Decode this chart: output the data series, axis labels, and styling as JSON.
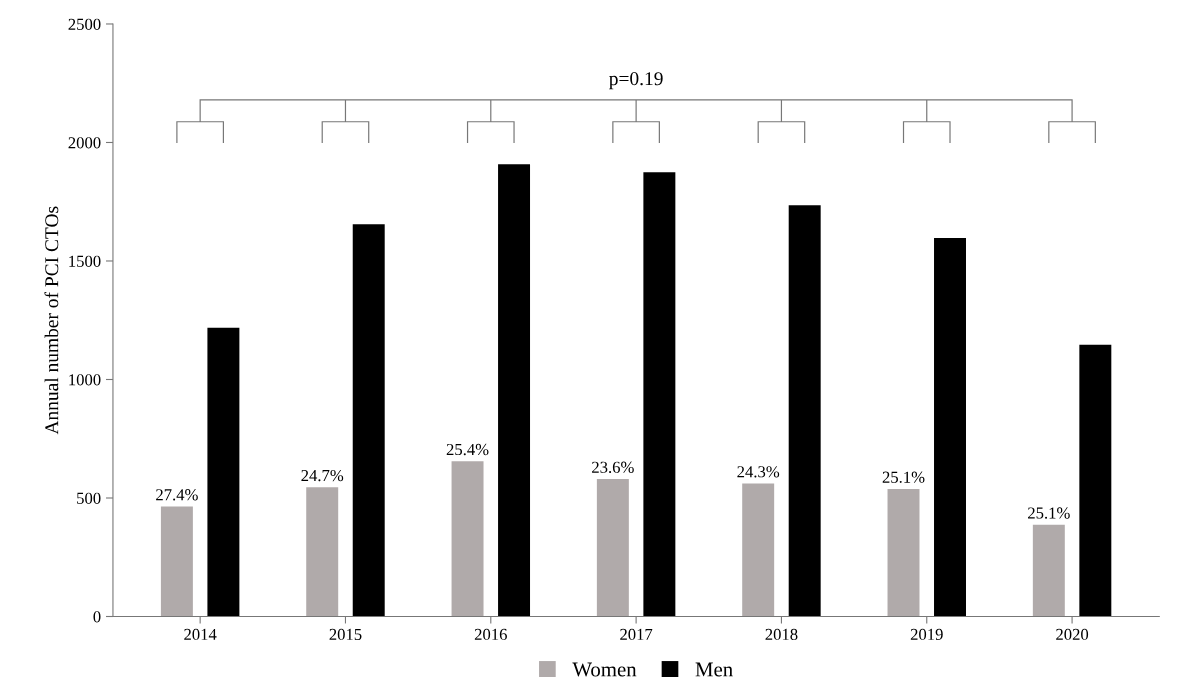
{
  "chart_data": {
    "type": "bar",
    "ylabel": "Annual number of PCI CTOs",
    "categories": [
      "2014",
      "2015",
      "2016",
      "2017",
      "2018",
      "2019",
      "2020"
    ],
    "series": [
      {
        "name": "Women",
        "color": "#b0aaaa",
        "values": [
          464,
          545,
          655,
          580,
          561,
          538,
          387
        ]
      },
      {
        "name": "Men",
        "color": "#000000",
        "values": [
          1218,
          1655,
          1908,
          1874,
          1735,
          1597,
          1147
        ]
      }
    ],
    "ylim": [
      0,
      2500
    ],
    "yticks": [
      0,
      500,
      1000,
      1500,
      2000,
      2500
    ],
    "grid": false,
    "legend": "bottom",
    "annotations": [
      "p=0.19",
      "27.4%",
      "24.7%",
      "25.4%",
      "23.6%",
      "24.3%",
      "25.1%",
      "25.1%"
    ]
  }
}
